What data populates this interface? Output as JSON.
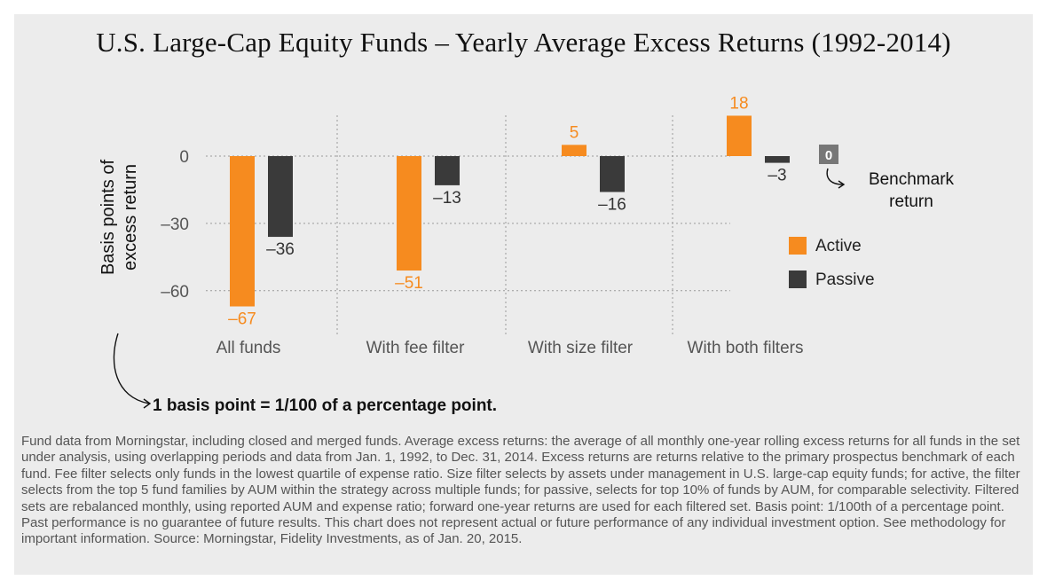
{
  "title": "U.S. Large-Cap Equity Funds – Yearly Average Excess Returns (1992-2014)",
  "ylabel_lines": [
    "Basis points of",
    "excess return"
  ],
  "colors": {
    "active": "#f68b1f",
    "passive": "#3a3a3a",
    "benchmark": "#777777",
    "grid": "#9a9a9a"
  },
  "benchmark": {
    "value_label": "0",
    "label_lines": [
      "Benchmark",
      "return"
    ]
  },
  "bp_note": "1 basis point = 1/100 of a percentage point.",
  "footnote": "Fund data from Morningstar, including closed and merged funds. Average excess returns: the average of all monthly one-year rolling excess returns for all funds in the set under analysis, using overlapping periods and data from Jan. 1, 1992, to Dec. 31, 2014. Excess returns are returns relative to the primary prospectus benchmark of each fund. Fee filter selects only funds in the lowest quartile of expense ratio. Size filter selects by assets under management in U.S. large-cap equity funds; for active, the filter selects from the top 5 fund families by AUM within the strategy across multiple funds; for passive, selects for top 10% of funds by AUM, for comparable selectivity. Filtered sets are rebalanced monthly, using reported AUM and expense ratio; forward one-year returns are used for each filtered set. Basis point: 1/100th of a percentage point. Past performance is no guarantee of future results. This chart does not represent actual or future performance of any individual investment option. See methodology for important information. Source: Morningstar, Fidelity Investments, as of Jan. 20, 2015.",
  "chart_data": {
    "type": "bar",
    "categories": [
      "All funds",
      "With fee filter",
      "With size filter",
      "With both filters"
    ],
    "series": [
      {
        "name": "Active",
        "values": [
          -67,
          -51,
          5,
          18
        ],
        "labels": [
          "–67",
          "–51",
          "5",
          "18"
        ]
      },
      {
        "name": "Passive",
        "values": [
          -36,
          -13,
          -16,
          -3
        ],
        "labels": [
          "–36",
          "–13",
          "–16",
          "–3"
        ]
      }
    ],
    "yticks": [
      0,
      -30,
      -60
    ],
    "ytick_labels": [
      "0",
      "–30",
      "–60"
    ],
    "ylim": [
      -70,
      20
    ],
    "grid": true,
    "legend": "right"
  }
}
